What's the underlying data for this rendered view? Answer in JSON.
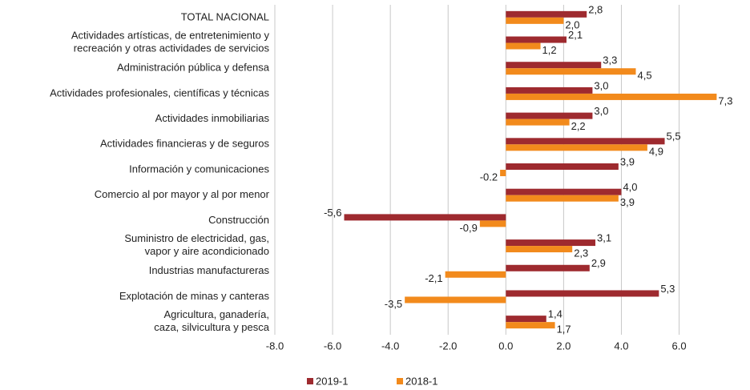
{
  "chart_data": {
    "type": "hbar",
    "categories": [
      "TOTAL NACIONAL",
      "Actividades artísticas, de entretenimiento y\nrecreación y otras actividades de servicios",
      "Administración pública y defensa",
      "Actividades profesionales, científicas y técnicas",
      "Actividades inmobiliarias",
      "Actividades financieras y de seguros",
      "Información y comunicaciones",
      "Comercio al por mayor y al por menor",
      "Construcción",
      "Suministro de electricidad, gas,\nvapor y aire acondicionado",
      "Industrias manufactureras",
      "Explotación de minas y canteras",
      "Agricultura, ganadería,\ncaza, silvicultura y pesca"
    ],
    "series": [
      {
        "name": "2019-1",
        "color": "#9e2a2f",
        "values": [
          2.8,
          2.1,
          3.3,
          3.0,
          3.0,
          5.5,
          3.9,
          4.0,
          -5.6,
          3.1,
          2.9,
          5.3,
          1.4
        ],
        "value_labels": [
          "2,8",
          "2,1",
          "3,3",
          "3,0",
          "3,0",
          "5,5",
          "3,9",
          "4,0",
          "-5,6",
          "3,1",
          "2,9",
          "5,3",
          "1,4"
        ]
      },
      {
        "name": "2018-1",
        "color": "#f28a1c",
        "values": [
          2.0,
          1.2,
          4.5,
          7.3,
          2.2,
          4.9,
          -0.2,
          3.9,
          -0.9,
          2.3,
          -2.1,
          -3.5,
          1.7
        ],
        "value_labels": [
          "2,0",
          "1,2",
          "4,5",
          "7,3",
          "2,2",
          "4,9",
          "-0.2",
          "3,9",
          "-0,9",
          "2,3",
          "-2,1",
          "-3,5",
          "1,7"
        ]
      }
    ],
    "xlim": [
      -8,
      7.4
    ],
    "xticks": [
      {
        "value": -8,
        "label": "-8.0"
      },
      {
        "value": -6,
        "label": "-6.0"
      },
      {
        "value": -4,
        "label": "-4.0"
      },
      {
        "value": -2,
        "label": "-2.0"
      },
      {
        "value": 0,
        "label": "0.0"
      },
      {
        "value": 2,
        "label": "2.0"
      },
      {
        "value": 4,
        "label": "4.0"
      },
      {
        "value": 6,
        "label": "6.0"
      }
    ],
    "grid": true,
    "legend": "bottom"
  }
}
